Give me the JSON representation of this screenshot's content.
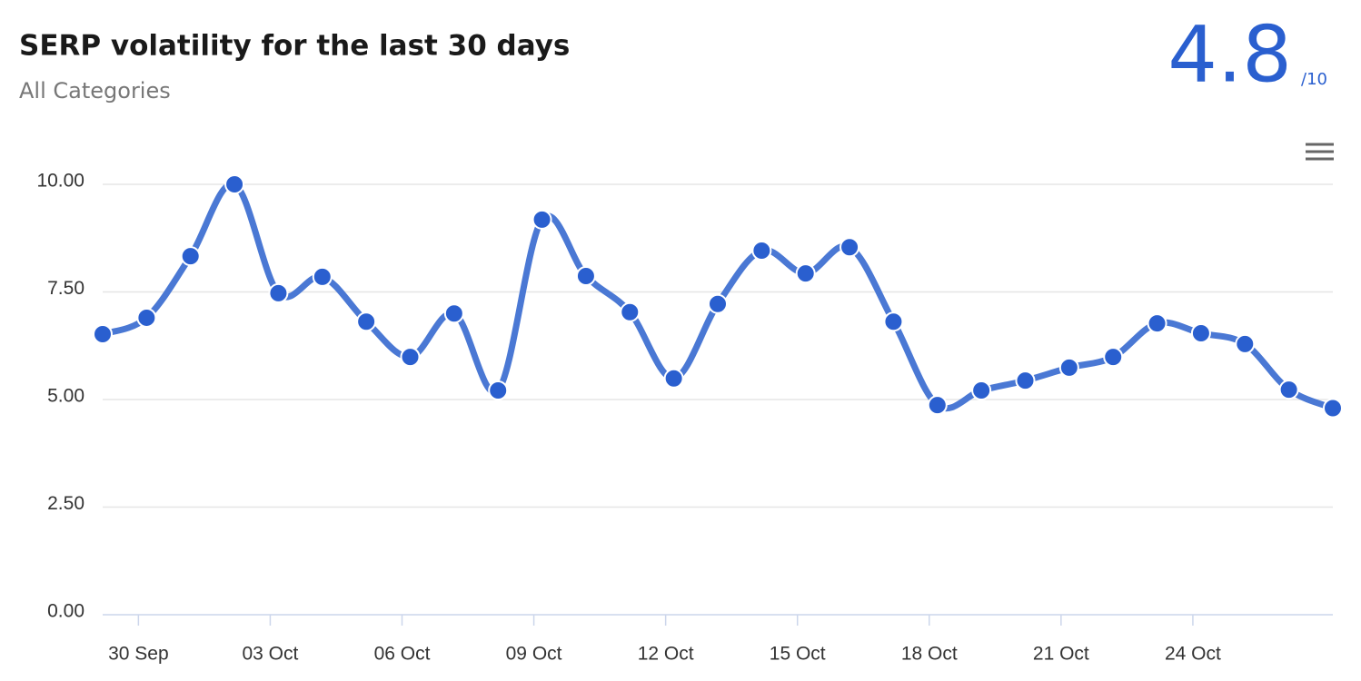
{
  "chart_data": {
    "type": "line",
    "title": "SERP volatility for the last 30 days",
    "subtitle": "All Categories",
    "score": "4.8",
    "score_max": "/10",
    "x": [
      "29 Sep",
      "30 Sep",
      "01 Oct",
      "02 Oct",
      "03 Oct",
      "04 Oct",
      "05 Oct",
      "06 Oct",
      "07 Oct",
      "08 Oct",
      "09 Oct",
      "10 Oct",
      "11 Oct",
      "12 Oct",
      "13 Oct",
      "14 Oct",
      "15 Oct",
      "16 Oct",
      "17 Oct",
      "18 Oct",
      "19 Oct",
      "20 Oct",
      "21 Oct",
      "22 Oct",
      "23 Oct",
      "24 Oct",
      "25 Oct",
      "26 Oct",
      "27 Oct"
    ],
    "values": [
      6.52,
      6.9,
      8.33,
      10.0,
      7.47,
      7.85,
      6.81,
      5.99,
      7.0,
      5.21,
      9.18,
      7.87,
      7.03,
      5.49,
      7.22,
      8.46,
      7.93,
      8.54,
      6.81,
      4.87,
      5.21,
      5.44,
      5.74,
      5.99,
      6.77,
      6.54,
      6.29,
      5.23,
      4.8
    ],
    "color": "#4a78d4",
    "marker_color": "#2a5fcf",
    "xticks": [
      "30 Sep",
      "03 Oct",
      "06 Oct",
      "09 Oct",
      "12 Oct",
      "15 Oct",
      "18 Oct",
      "21 Oct",
      "24 Oct"
    ],
    "ylim": [
      0,
      10
    ],
    "yticks": [
      {
        "value": 0,
        "label": "0.00"
      },
      {
        "value": 2.5,
        "label": "2.50"
      },
      {
        "value": 5,
        "label": "5.00"
      },
      {
        "value": 7.5,
        "label": "7.50"
      },
      {
        "value": 10,
        "label": "10.00"
      }
    ],
    "grid": true
  }
}
